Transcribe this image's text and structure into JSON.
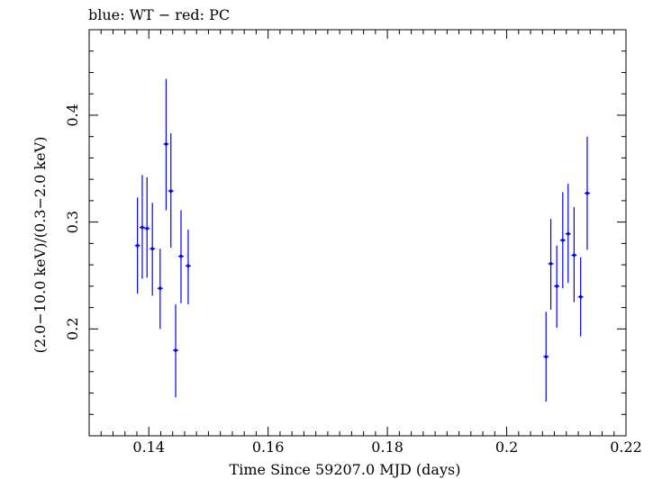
{
  "chart_data": {
    "type": "scatter",
    "title": "blue: WT − red: PC",
    "xlabel": "Time Since 59207.0 MJD (days)",
    "ylabel": "(2.0−10.0 keV)/(0.3−2.0 keV)",
    "xlim": [
      0.13,
      0.22
    ],
    "ylim": [
      0.1,
      0.48
    ],
    "x_ticks": [
      0.14,
      0.16,
      0.18,
      0.2,
      0.22
    ],
    "x_tick_labels": [
      "0.14",
      "0.16",
      "0.18",
      "0.2",
      "0.22"
    ],
    "y_ticks": [
      0.2,
      0.3,
      0.4
    ],
    "y_tick_labels": [
      "0.2",
      "0.3",
      "0.4"
    ],
    "grid": false,
    "series": [
      {
        "color": "#0000ff",
        "points": [
          {
            "x": 0.1381,
            "y": 0.278,
            "ylo": 0.233,
            "yhi": 0.323
          },
          {
            "x": 0.1389,
            "y": 0.295,
            "ylo": 0.247,
            "yhi": 0.344
          },
          {
            "x": 0.1397,
            "y": 0.294,
            "ylo": 0.248,
            "yhi": 0.342
          },
          {
            "x": 0.1406,
            "y": 0.275,
            "ylo": 0.231,
            "yhi": 0.318
          },
          {
            "x": 0.1419,
            "y": 0.238,
            "ylo": 0.2,
            "yhi": 0.275
          },
          {
            "x": 0.1429,
            "y": 0.373,
            "ylo": 0.311,
            "yhi": 0.434
          },
          {
            "x": 0.1437,
            "y": 0.329,
            "ylo": 0.276,
            "yhi": 0.383
          },
          {
            "x": 0.1445,
            "y": 0.18,
            "ylo": 0.136,
            "yhi": 0.223
          },
          {
            "x": 0.1454,
            "y": 0.268,
            "ylo": 0.224,
            "yhi": 0.311
          },
          {
            "x": 0.1466,
            "y": 0.259,
            "ylo": 0.223,
            "yhi": 0.293
          },
          {
            "x": 0.2066,
            "y": 0.174,
            "ylo": 0.132,
            "yhi": 0.216
          },
          {
            "x": 0.2074,
            "y": 0.261,
            "ylo": 0.218,
            "yhi": 0.303
          },
          {
            "x": 0.2084,
            "y": 0.24,
            "ylo": 0.201,
            "yhi": 0.278
          },
          {
            "x": 0.2094,
            "y": 0.283,
            "ylo": 0.238,
            "yhi": 0.328
          },
          {
            "x": 0.2103,
            "y": 0.289,
            "ylo": 0.243,
            "yhi": 0.336
          },
          {
            "x": 0.2113,
            "y": 0.269,
            "ylo": 0.225,
            "yhi": 0.314
          },
          {
            "x": 0.2124,
            "y": 0.23,
            "ylo": 0.193,
            "yhi": 0.267
          },
          {
            "x": 0.2135,
            "y": 0.327,
            "ylo": 0.274,
            "yhi": 0.38
          }
        ]
      }
    ]
  }
}
